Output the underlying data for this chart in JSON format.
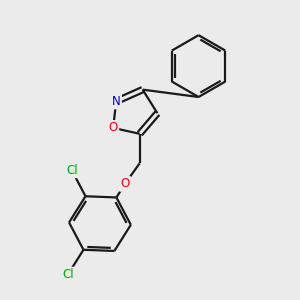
{
  "background_color": "#ebebeb",
  "bond_color": "#1a1a1a",
  "bond_width": 1.6,
  "atom_colors": {
    "O": "#ff0000",
    "N": "#0000cc",
    "Cl": "#00aa00",
    "C": "#1a1a1a"
  },
  "font_size_atom": 8.5,
  "bg": "#ebebeb"
}
